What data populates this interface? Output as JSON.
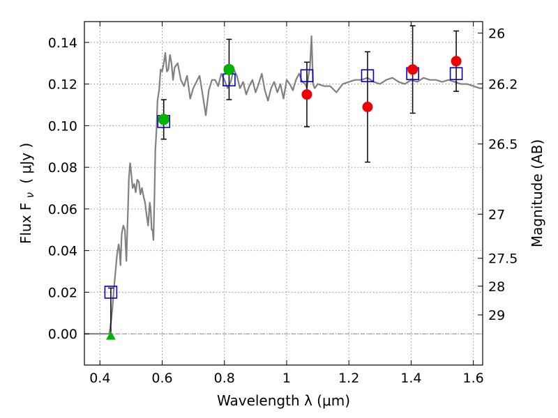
{
  "chart_data": {
    "type": "scatter",
    "xlabel": "Wavelength  λ (μm)",
    "ylabel": "Flux  F",
    "ylabel_sub": "ν",
    "ylabel_unit": "( μJy )",
    "ylabel_right": "Magnitude (AB)",
    "xlim": [
      0.35,
      1.63
    ],
    "ylim": [
      -0.015,
      0.15
    ],
    "grid": true,
    "x_ticks": [
      0.4,
      0.6,
      0.8,
      1.0,
      1.2,
      1.4,
      1.6
    ],
    "x_tick_labels": [
      "0.4",
      "0.6",
      "0.8",
      "1",
      "1.2",
      "1.4",
      "1.6"
    ],
    "y_ticks": [
      0.0,
      0.02,
      0.04,
      0.06,
      0.08,
      0.1,
      0.12,
      0.14
    ],
    "y_tick_labels": [
      "0.00",
      "0.02",
      "0.04",
      "0.06",
      "0.08",
      "0.10",
      "0.12",
      "0.14"
    ],
    "right_ticks": [
      {
        "label": "26",
        "flux": 0.1445
      },
      {
        "label": "26.2",
        "flux": 0.1201
      },
      {
        "label": "26.5",
        "flux": 0.0912
      },
      {
        "label": "27",
        "flux": 0.0575
      },
      {
        "label": "27.5",
        "flux": 0.0363
      },
      {
        "label": "28",
        "flux": 0.0229
      },
      {
        "label": "29",
        "flux": 0.0091
      }
    ],
    "colors": {
      "model": "#808080",
      "model_points": "#0000cc",
      "green": "#00b400",
      "red": "#ee0000",
      "errorbar": "#000000",
      "grid": "#888888"
    },
    "model_spectrum": {
      "x": [
        0.35,
        0.42,
        0.43,
        0.435,
        0.44,
        0.445,
        0.45,
        0.455,
        0.46,
        0.463,
        0.466,
        0.47,
        0.475,
        0.48,
        0.485,
        0.49,
        0.493,
        0.497,
        0.5,
        0.505,
        0.51,
        0.515,
        0.52,
        0.525,
        0.53,
        0.535,
        0.54,
        0.545,
        0.55,
        0.555,
        0.56,
        0.563,
        0.566,
        0.569,
        0.572,
        0.575,
        0.578,
        0.582,
        0.585,
        0.59,
        0.595,
        0.6,
        0.605,
        0.61,
        0.615,
        0.62,
        0.625,
        0.63,
        0.635,
        0.64,
        0.65,
        0.66,
        0.67,
        0.68,
        0.69,
        0.7,
        0.71,
        0.72,
        0.73,
        0.74,
        0.75,
        0.76,
        0.77,
        0.78,
        0.79,
        0.8,
        0.81,
        0.82,
        0.83,
        0.84,
        0.85,
        0.86,
        0.87,
        0.88,
        0.89,
        0.9,
        0.91,
        0.92,
        0.93,
        0.94,
        0.95,
        0.96,
        0.97,
        0.98,
        0.99,
        1.0,
        1.01,
        1.02,
        1.03,
        1.04,
        1.05,
        1.06,
        1.065,
        1.07,
        1.075,
        1.08,
        1.085,
        1.09,
        1.1,
        1.12,
        1.14,
        1.16,
        1.18,
        1.2,
        1.22,
        1.24,
        1.26,
        1.28,
        1.3,
        1.32,
        1.34,
        1.36,
        1.38,
        1.4,
        1.42,
        1.44,
        1.46,
        1.48,
        1.5,
        1.52,
        1.54,
        1.56,
        1.58,
        1.6,
        1.62,
        1.63
      ],
      "y": [
        0.0,
        0.0,
        0.0,
        0.005,
        0.012,
        0.022,
        0.03,
        0.038,
        0.043,
        0.04,
        0.033,
        0.048,
        0.052,
        0.05,
        0.035,
        0.06,
        0.075,
        0.082,
        0.078,
        0.07,
        0.072,
        0.068,
        0.074,
        0.073,
        0.067,
        0.07,
        0.066,
        0.063,
        0.057,
        0.052,
        0.063,
        0.06,
        0.05,
        0.05,
        0.045,
        0.065,
        0.088,
        0.099,
        0.112,
        0.117,
        0.127,
        0.126,
        0.13,
        0.135,
        0.126,
        0.127,
        0.134,
        0.13,
        0.122,
        0.128,
        0.13,
        0.122,
        0.119,
        0.124,
        0.113,
        0.118,
        0.121,
        0.124,
        0.115,
        0.105,
        0.117,
        0.122,
        0.122,
        0.119,
        0.125,
        0.122,
        0.118,
        0.121,
        0.127,
        0.124,
        0.118,
        0.121,
        0.115,
        0.119,
        0.122,
        0.116,
        0.12,
        0.125,
        0.117,
        0.112,
        0.118,
        0.121,
        0.116,
        0.12,
        0.113,
        0.122,
        0.12,
        0.117,
        0.122,
        0.125,
        0.121,
        0.12,
        0.118,
        0.124,
        0.128,
        0.143,
        0.12,
        0.118,
        0.12,
        0.119,
        0.119,
        0.116,
        0.12,
        0.121,
        0.122,
        0.122,
        0.123,
        0.121,
        0.12,
        0.122,
        0.123,
        0.121,
        0.12,
        0.122,
        0.121,
        0.123,
        0.122,
        0.122,
        0.121,
        0.122,
        0.121,
        0.12,
        0.12,
        0.119,
        0.118,
        0.118
      ]
    },
    "model_points": {
      "x": [
        0.435,
        0.605,
        0.815,
        1.065,
        1.26,
        1.405,
        1.545
      ],
      "y": [
        0.02,
        0.102,
        0.122,
        0.124,
        0.124,
        0.125,
        0.125
      ]
    },
    "green_points": [
      {
        "x": 0.605,
        "y": 0.103,
        "err_low": 0.0095,
        "err_high": 0.0095
      },
      {
        "x": 0.815,
        "y": 0.127,
        "err_low": 0.0145,
        "err_high": 0.0145
      }
    ],
    "red_points": [
      {
        "x": 1.065,
        "y": 0.115,
        "err_low": 0.0155,
        "err_high": 0.0155
      },
      {
        "x": 1.26,
        "y": 0.109,
        "err_low": 0.0265,
        "err_high": 0.0265
      },
      {
        "x": 1.405,
        "y": 0.127,
        "err_low": 0.021,
        "err_high": 0.021
      },
      {
        "x": 1.545,
        "y": 0.131,
        "err_low": 0.0145,
        "err_high": 0.0145
      }
    ],
    "upper_limit": {
      "x": 0.435,
      "y": -0.001,
      "err_high": 0.023
    }
  }
}
